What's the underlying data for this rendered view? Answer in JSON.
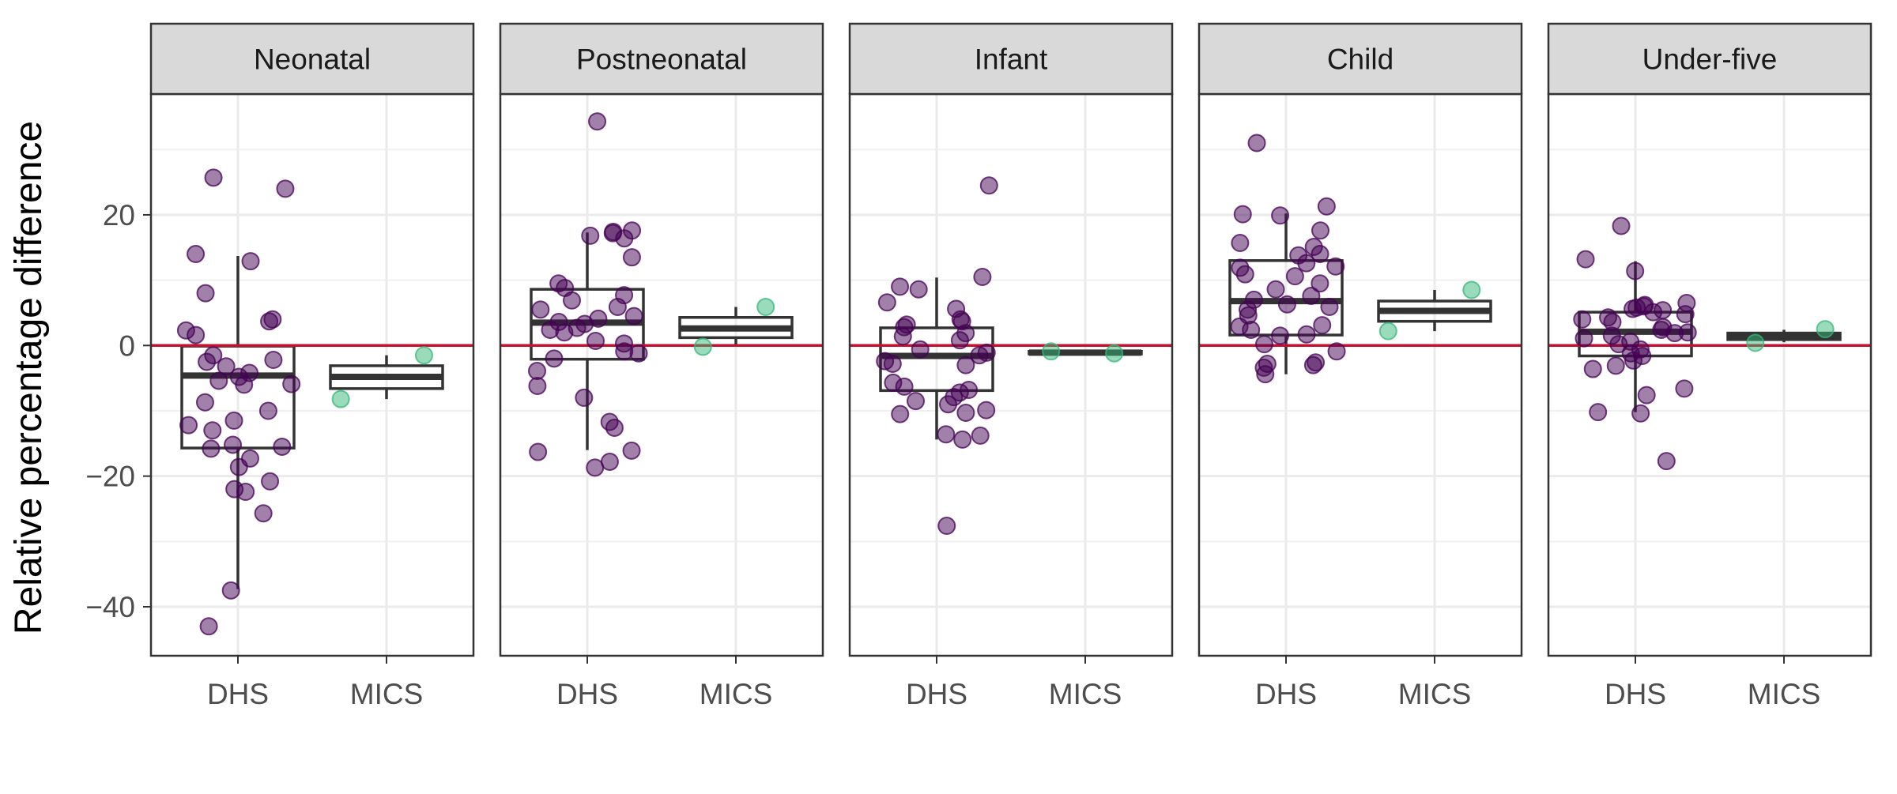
{
  "chart_data": {
    "type": "scatter",
    "ylabel": "Relative percentage difference",
    "xlabel": "",
    "ylim": [
      -47.5,
      38.5
    ],
    "yticks": [
      -40,
      -20,
      0,
      20
    ],
    "categories": [
      "DHS",
      "MICS"
    ],
    "reference_line": {
      "y": 0,
      "color": "#c8102e"
    },
    "colors": {
      "DHS": "#440154",
      "MICS": "#35b779"
    },
    "grid": true,
    "legend": "none",
    "panels": [
      {
        "name": "Neonatal",
        "boxes": [
          {
            "category": "DHS",
            "q1": -15.7,
            "median": -4.6,
            "q3": -0.1,
            "whisker_low": -37.3,
            "whisker_high": 13.7
          },
          {
            "category": "MICS",
            "q1": -6.6,
            "median": -4.8,
            "q3": -3.1,
            "whisker_low": -8.2,
            "whisker_high": -1.5
          }
        ],
        "points": [
          {
            "category": "DHS",
            "values": [
              25.7,
              24.0,
              12.9,
              14.0,
              8.0,
              4.0,
              3.7,
              2.3,
              1.6,
              -1.5,
              -2.2,
              -2.5,
              -3.2,
              -4.2,
              -4.8,
              -5.4,
              -5.9,
              -6.0,
              -8.7,
              -10.0,
              -11.5,
              -12.2,
              -13.0,
              -15.2,
              -15.8,
              -15.5,
              -17.3,
              -18.6,
              -20.8,
              -22.0,
              -22.4,
              -25.7,
              -37.5,
              -43.0
            ]
          },
          {
            "category": "MICS",
            "values": [
              -1.5,
              -8.2
            ]
          }
        ]
      },
      {
        "name": "Postneonatal",
        "boxes": [
          {
            "category": "DHS",
            "q1": -2.1,
            "median": 3.5,
            "q3": 8.6,
            "whisker_low": -16.0,
            "whisker_high": 17.3
          },
          {
            "category": "MICS",
            "q1": 1.2,
            "median": 2.6,
            "q3": 4.3,
            "whisker_low": 0.2,
            "whisker_high": 5.9
          }
        ],
        "points": [
          {
            "category": "DHS",
            "values": [
              34.3,
              17.6,
              17.4,
              17.2,
              16.8,
              16.4,
              13.5,
              9.5,
              8.8,
              7.7,
              6.9,
              5.9,
              5.5,
              4.5,
              4.1,
              3.6,
              3.3,
              2.7,
              2.4,
              2.0,
              0.7,
              0.3,
              -0.9,
              -1.2,
              -2.0,
              -3.9,
              -6.2,
              -8.0,
              -11.7,
              -12.6,
              -16.1,
              -16.3,
              -17.8,
              -18.7
            ]
          },
          {
            "category": "MICS",
            "values": [
              5.9,
              -0.2
            ]
          }
        ]
      },
      {
        "name": "Infant",
        "boxes": [
          {
            "category": "DHS",
            "q1": -6.9,
            "median": -1.6,
            "q3": 2.7,
            "whisker_low": -14.4,
            "whisker_high": 10.4
          },
          {
            "category": "MICS",
            "q1": -1.3,
            "median": -1.1,
            "q3": -0.9,
            "whisker_low": -1.3,
            "whisker_high": -0.9
          }
        ],
        "points": [
          {
            "category": "DHS",
            "values": [
              24.5,
              10.5,
              9.0,
              8.6,
              6.6,
              5.6,
              4.0,
              3.7,
              3.2,
              2.8,
              1.9,
              1.4,
              0.8,
              -0.6,
              -1.1,
              -1.5,
              -2.4,
              -2.8,
              -3.0,
              -5.7,
              -6.3,
              -6.8,
              -7.2,
              -7.9,
              -8.5,
              -9.0,
              -9.9,
              -10.3,
              -10.5,
              -13.6,
              -13.8,
              -14.4,
              -27.6
            ]
          },
          {
            "category": "MICS",
            "values": [
              -1.2,
              -0.9
            ]
          }
        ]
      },
      {
        "name": "Child",
        "boxes": [
          {
            "category": "DHS",
            "q1": 1.6,
            "median": 6.8,
            "q3": 13.0,
            "whisker_low": -4.4,
            "whisker_high": 20.2
          },
          {
            "category": "MICS",
            "q1": 3.7,
            "median": 5.3,
            "q3": 6.8,
            "whisker_low": 2.2,
            "whisker_high": 8.5
          }
        ],
        "points": [
          {
            "category": "DHS",
            "values": [
              31.0,
              21.3,
              20.1,
              19.9,
              17.6,
              15.7,
              15.1,
              14.0,
              13.8,
              12.6,
              12.1,
              11.9,
              10.9,
              10.6,
              9.5,
              8.6,
              7.6,
              7.0,
              6.3,
              5.9,
              5.5,
              4.6,
              3.1,
              2.9,
              2.4,
              1.7,
              1.5,
              0.2,
              -0.9,
              -2.6,
              -2.8,
              -3.0,
              -3.4,
              -4.4
            ]
          },
          {
            "category": "MICS",
            "values": [
              8.5,
              2.2
            ]
          }
        ]
      },
      {
        "name": "Under-five",
        "boxes": [
          {
            "category": "DHS",
            "q1": -1.6,
            "median": 2.1,
            "q3": 5.1,
            "whisker_low": -10.2,
            "whisker_high": 12.9
          },
          {
            "category": "MICS",
            "q1": 0.9,
            "median": 1.5,
            "q3": 1.9,
            "whisker_low": 0.5,
            "whisker_high": 2.4
          }
        ],
        "points": [
          {
            "category": "DHS",
            "values": [
              18.3,
              13.2,
              11.4,
              6.5,
              6.2,
              6.0,
              5.8,
              5.6,
              5.4,
              5.1,
              4.8,
              4.3,
              4.0,
              3.6,
              2.8,
              2.4,
              2.0,
              1.9,
              1.5,
              1.1,
              0.6,
              0.2,
              -0.6,
              -1.2,
              -1.6,
              -2.3,
              -3.1,
              -3.6,
              -6.6,
              -7.6,
              -10.2,
              -10.4,
              -17.7
            ]
          },
          {
            "category": "MICS",
            "values": [
              2.5,
              0.4
            ]
          }
        ]
      }
    ]
  }
}
